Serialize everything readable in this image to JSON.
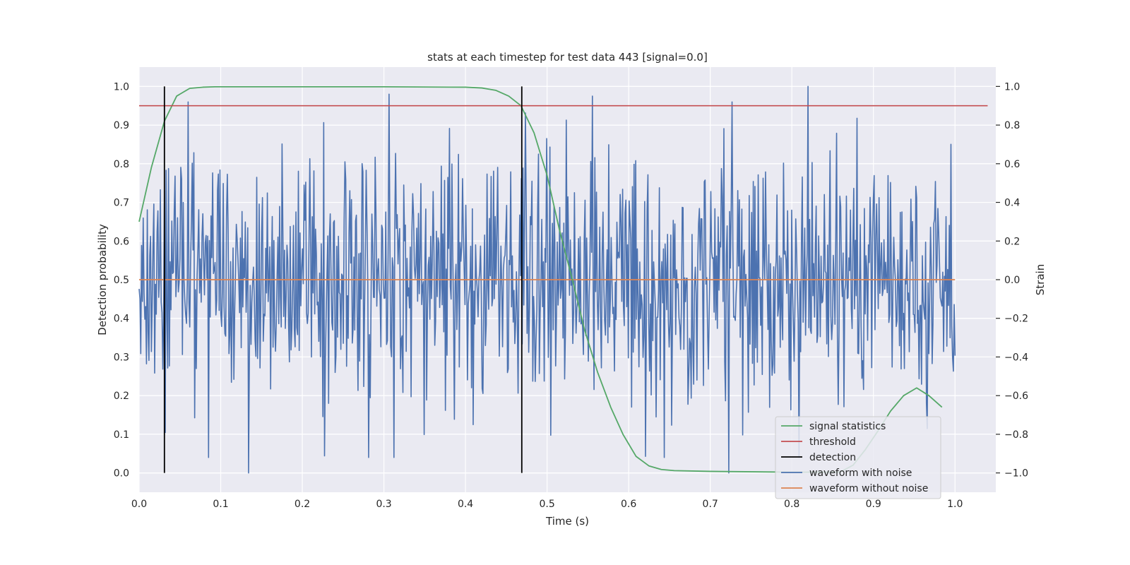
{
  "chart_data": {
    "type": "line",
    "title": "stats at each timestep for test data 443 [signal=0.0]",
    "xlabel": "Time (s)",
    "ylabel_left": "Detection probability",
    "ylabel_right": "Strain",
    "xlim": [
      0.0,
      1.05
    ],
    "ylim_left": [
      -0.05,
      1.05
    ],
    "ylim_right": [
      -1.1,
      1.1
    ],
    "x_ticks": [
      "0.0",
      "0.1",
      "0.2",
      "0.3",
      "0.4",
      "0.5",
      "0.6",
      "0.7",
      "0.8",
      "0.9",
      "1.0"
    ],
    "y_ticks_left": [
      "0.0",
      "0.1",
      "0.2",
      "0.3",
      "0.4",
      "0.5",
      "0.6",
      "0.7",
      "0.8",
      "0.9",
      "1.0"
    ],
    "y_ticks_right": [
      "−1.0",
      "−0.8",
      "−0.6",
      "−0.4",
      "−0.2",
      "0.0",
      "0.2",
      "0.4",
      "0.6",
      "0.8",
      "1.0"
    ],
    "grid": true,
    "legend_position": "lower-right",
    "colors": {
      "signal_statistics": "#55a868",
      "threshold": "#c44e52",
      "detection": "#000000",
      "waveform_with_noise": "#4c72b0",
      "waveform_without_noise": "#dd8452",
      "background": "#eaeaf2"
    },
    "signal_statistics": {
      "name": "signal statistics",
      "x": [
        0.0,
        0.015,
        0.031,
        0.046,
        0.062,
        0.078,
        0.093,
        0.2,
        0.3,
        0.4,
        0.42,
        0.437,
        0.453,
        0.468,
        0.484,
        0.5,
        0.515,
        0.531,
        0.546,
        0.562,
        0.578,
        0.593,
        0.609,
        0.625,
        0.64,
        0.656,
        0.7,
        0.8,
        0.859,
        0.875,
        0.89,
        0.906,
        0.921,
        0.937,
        0.953,
        0.968,
        0.984
      ],
      "y": [
        0.65,
        0.79,
        0.91,
        0.975,
        0.995,
        0.998,
        0.999,
        0.999,
        0.999,
        0.998,
        0.996,
        0.99,
        0.975,
        0.95,
        0.88,
        0.77,
        0.63,
        0.5,
        0.37,
        0.26,
        0.17,
        0.1,
        0.043,
        0.018,
        0.009,
        0.006,
        0.004,
        0.002,
        0.002,
        0.02,
        0.06,
        0.11,
        0.16,
        0.2,
        0.22,
        0.2,
        0.17
      ]
    },
    "threshold": {
      "name": "threshold",
      "y": 0.95,
      "x_range": [
        0.0,
        1.04
      ]
    },
    "detection": {
      "name": "detection",
      "x": [
        0.031,
        0.469
      ],
      "y_range": [
        0.0,
        1.0
      ]
    },
    "waveform_without_noise": {
      "name": "waveform without noise",
      "x_range": [
        0.0,
        1.0
      ],
      "strain": 0.0
    },
    "waveform_with_noise": {
      "name": "waveform with noise",
      "x_range": [
        0.0,
        1.0
      ],
      "n_points": 1000,
      "strain_range": [
        -1.0,
        1.0
      ],
      "notable_peaks": [
        {
          "x": 0.306,
          "strain": 0.96
        },
        {
          "x": 0.82,
          "strain": 1.0
        },
        {
          "x": 0.134,
          "strain": -1.0
        },
        {
          "x": 0.723,
          "strain": -1.0
        },
        {
          "x": 0.556,
          "strain": 0.95
        }
      ]
    },
    "legend": [
      "signal statistics",
      "threshold",
      "detection",
      "waveform with noise",
      "waveform without noise"
    ]
  }
}
